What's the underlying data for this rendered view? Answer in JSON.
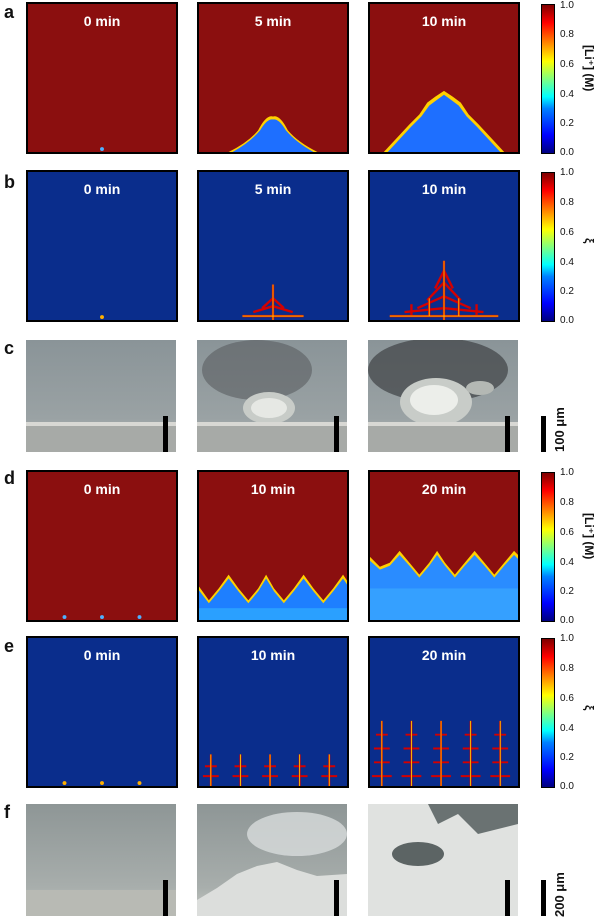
{
  "rows": [
    {
      "label": "a",
      "type": "sim",
      "bg": "#8b0f0f",
      "times": [
        "0 min",
        "5 min",
        "10 min"
      ]
    },
    {
      "label": "b",
      "type": "sim",
      "bg": "#0a2d8c",
      "times": [
        "0 min",
        "5 min",
        "10 min"
      ]
    },
    {
      "label": "c",
      "type": "photo"
    },
    {
      "label": "d",
      "type": "sim",
      "bg": "#8b0f0f",
      "times": [
        "0 min",
        "10 min",
        "20 min"
      ]
    },
    {
      "label": "e",
      "type": "sim",
      "bg": "#0a2d8c",
      "times": [
        "0 min",
        "10 min",
        "20 min"
      ]
    },
    {
      "label": "f",
      "type": "photo"
    }
  ],
  "colorbars": [
    {
      "title": "[Li⁺] (M)",
      "ticks": [
        "1.0",
        "0.8",
        "0.6",
        "0.4",
        "0.2",
        "0.0"
      ]
    },
    {
      "title": "ξ",
      "ticks": [
        "1.0",
        "0.8",
        "0.6",
        "0.4",
        "0.2",
        "0.0"
      ]
    },
    {
      "title": "[Li⁺] (M)",
      "ticks": [
        "1.0",
        "0.8",
        "0.6",
        "0.4",
        "0.2",
        "0.0"
      ]
    },
    {
      "title": "ξ",
      "ticks": [
        "1.0",
        "0.8",
        "0.6",
        "0.4",
        "0.2",
        "0.0"
      ]
    }
  ],
  "scale_bars": [
    "100 μm",
    "200 μm"
  ]
}
